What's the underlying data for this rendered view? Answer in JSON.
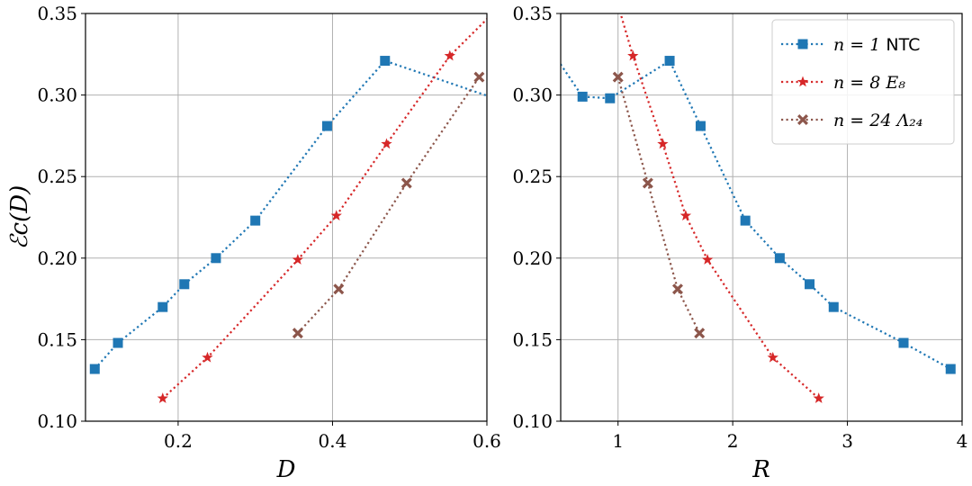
{
  "chart_data": [
    {
      "type": "line",
      "xlabel": "D",
      "ylabel": "ℰc(D)",
      "xlim": [
        0.08,
        0.6
      ],
      "ylim": [
        0.1,
        0.35
      ],
      "xticks": [
        0.2,
        0.4,
        0.6
      ],
      "yticks": [
        0.1,
        0.15,
        0.2,
        0.25,
        0.3,
        0.35
      ],
      "xtick_labels": [
        "0.2",
        "0.4",
        "0.6"
      ],
      "ytick_labels": [
        "0.10",
        "0.15",
        "0.20",
        "0.25",
        "0.30",
        "0.35"
      ],
      "grid": true,
      "series": [
        {
          "color": "#1f77b4",
          "marker": "square",
          "x": [
            0.092,
            0.122,
            0.18,
            0.208,
            0.249,
            0.3,
            0.393,
            0.468,
            0.61
          ],
          "y": [
            0.132,
            0.148,
            0.17,
            0.184,
            0.2,
            0.223,
            0.281,
            0.321,
            0.298
          ]
        },
        {
          "color": "#d62728",
          "marker": "star",
          "x": [
            0.18,
            0.238,
            0.355,
            0.405,
            0.47,
            0.552,
            0.65
          ],
          "y": [
            0.114,
            0.139,
            0.199,
            0.226,
            0.27,
            0.324,
            0.37
          ]
        },
        {
          "color": "#8c564b",
          "marker": "x",
          "x": [
            0.355,
            0.408,
            0.496,
            0.59
          ],
          "y": [
            0.154,
            0.181,
            0.246,
            0.311
          ]
        }
      ]
    },
    {
      "type": "line",
      "xlabel": "R",
      "ylabel": "",
      "xlim": [
        0.5,
        4.0
      ],
      "ylim": [
        0.1,
        0.35
      ],
      "xticks": [
        1,
        2,
        3,
        4
      ],
      "yticks": [
        0.1,
        0.15,
        0.2,
        0.25,
        0.3,
        0.35
      ],
      "xtick_labels": [
        "1",
        "2",
        "3",
        "4"
      ],
      "ytick_labels": [
        "0.10",
        "0.15",
        "0.20",
        "0.25",
        "0.30",
        "0.35"
      ],
      "grid": true,
      "legend": {
        "placement": "top-right",
        "entries": [
          {
            "series": 0,
            "math": "n = 1",
            "suffix": "NTC"
          },
          {
            "series": 1,
            "math": "n = 8",
            "suffix": "E₈"
          },
          {
            "series": 2,
            "math": "n = 24",
            "suffix": "Λ₂₄"
          }
        ]
      },
      "series": [
        {
          "color": "#1f77b4",
          "marker": "square",
          "x": [
            0.45,
            0.69,
            0.93,
            1.45,
            1.72,
            2.11,
            2.41,
            2.67,
            2.88,
            3.49,
            3.9
          ],
          "y": [
            0.324,
            0.299,
            0.298,
            0.321,
            0.281,
            0.223,
            0.2,
            0.184,
            0.17,
            0.148,
            0.132
          ],
          "draw_marker": [
            false,
            true,
            true,
            true,
            true,
            true,
            true,
            true,
            true,
            true,
            true
          ]
        },
        {
          "color": "#d62728",
          "marker": "star",
          "x": [
            0.98,
            1.13,
            1.39,
            1.59,
            1.78,
            2.35,
            2.75
          ],
          "y": [
            0.36,
            0.324,
            0.27,
            0.226,
            0.199,
            0.139,
            0.114
          ],
          "draw_marker": [
            false,
            true,
            true,
            true,
            true,
            true,
            true
          ]
        },
        {
          "color": "#8c564b",
          "marker": "x",
          "x": [
            1.0,
            1.26,
            1.52,
            1.71
          ],
          "y": [
            0.311,
            0.246,
            0.181,
            0.154
          ]
        }
      ]
    }
  ]
}
